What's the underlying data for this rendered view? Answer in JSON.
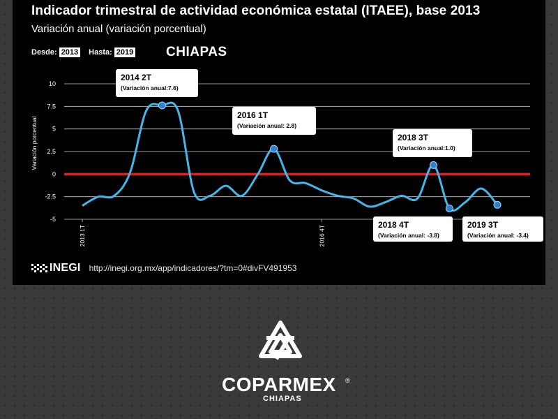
{
  "header": {
    "title": "Indicador  trimestral de actividad económica estatal (ITAEE), base 2013",
    "subtitle": "Variación anual (variación porcentual)",
    "desde_label": "Desde:",
    "desde_value": "2013",
    "hasta_label": "Hasta:",
    "hasta_value": "2019",
    "state": "CHIAPAS"
  },
  "chart_data": {
    "type": "line",
    "ylabel": "Variación porcentual",
    "ylim": [
      -5,
      10
    ],
    "yticks": [
      "10",
      "7.5",
      "5",
      "2.5",
      "0",
      "-2.5",
      "-5"
    ],
    "xtick_labels": [
      "2013 1T",
      "2016 4T"
    ],
    "series": [
      {
        "color": "#43b6ea",
        "x": [
          "2013 1T",
          "2013 2T",
          "2013 3T",
          "2013 4T",
          "2014 1T",
          "2014 2T",
          "2014 3T",
          "2014 4T",
          "2015 1T",
          "2015 2T",
          "2015 3T",
          "2015 4T",
          "2016 1T",
          "2016 2T",
          "2016 3T",
          "2016 4T",
          "2017 1T",
          "2017 2T",
          "2017 3T",
          "2017 4T",
          "2018 1T",
          "2018 2T",
          "2018 3T",
          "2018 4T",
          "2019 1T",
          "2019 2T",
          "2019 3T"
        ],
        "values": [
          -3.5,
          -2.5,
          -2.4,
          0.2,
          7.0,
          7.6,
          7.0,
          -2.0,
          -2.4,
          -1.3,
          -2.4,
          0.0,
          2.8,
          -0.7,
          -1.0,
          -1.8,
          -2.4,
          -2.7,
          -3.6,
          -3.1,
          -2.4,
          -2.7,
          1.0,
          -3.8,
          -3.1,
          -1.6,
          -3.4
        ]
      }
    ],
    "reference_line": {
      "y": 0,
      "color": "#e41d1d"
    },
    "annotations": [
      {
        "x": "2014 2T",
        "y": 7.6,
        "title": "2014 2T",
        "note": "(Variación anual:7.6)"
      },
      {
        "x": "2016 1T",
        "y": 2.8,
        "title": "2016 1T",
        "note": "(Variación anual: 2.8)"
      },
      {
        "x": "2018 3T",
        "y": 1.0,
        "title": "2018 3T",
        "note": "(Variación anual:1.0)"
      },
      {
        "x": "2018 4T",
        "y": -3.8,
        "title": "2018 4T",
        "note": "(Variación anual: -3.8)"
      },
      {
        "x": "2019 3T",
        "y": -3.4,
        "title": "2019 3T",
        "note": "(Variación anual: -3.4)"
      }
    ],
    "grid": true
  },
  "footer": {
    "source_logo": "INEGI",
    "url": "http://inegi.org.mx/app/indicadores/?tm=0#divFV491953"
  },
  "brand": {
    "name": "COPARMEX",
    "registered": "®",
    "sub": "CHIAPAS"
  }
}
